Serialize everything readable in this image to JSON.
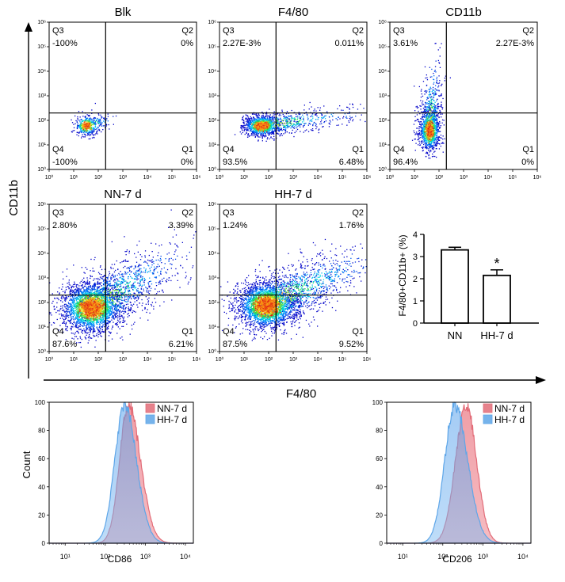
{
  "chart_data": {
    "type": "flow-cytometry-figure",
    "shared_axes": {
      "x_label": "F4/80",
      "y_label": "CD11b"
    },
    "tick_labels": [
      "10⁰",
      "10¹",
      "10²",
      "10³",
      "10⁴",
      "10⁵",
      "10⁶"
    ],
    "dot_plots": [
      {
        "title": "Blk",
        "quadrants": {
          "Q1": {
            "label": "Q1",
            "value": "0%"
          },
          "Q2": {
            "label": "Q2",
            "value": "0%"
          },
          "Q3": {
            "label": "Q3",
            "value": "-100%"
          },
          "Q4": {
            "label": "Q4",
            "value": "-100%"
          }
        },
        "population": {
          "center_log": [
            1.5,
            1.8
          ],
          "spread_log": [
            0.4,
            0.35
          ],
          "tail_log": [
            0.5,
            0.15
          ],
          "density": 450
        }
      },
      {
        "title": "F4/80",
        "quadrants": {
          "Q1": {
            "label": "Q1",
            "value": "6.48%"
          },
          "Q2": {
            "label": "Q2",
            "value": "0.011%"
          },
          "Q3": {
            "label": "Q3",
            "value": "2.27E-3%"
          },
          "Q4": {
            "label": "Q4",
            "value": "93.5%"
          }
        },
        "population": {
          "center_log": [
            1.7,
            1.8
          ],
          "spread_log": [
            0.6,
            0.35
          ],
          "tail_log": [
            2.2,
            0.3
          ],
          "density": 1500
        }
      },
      {
        "title": "CD11b",
        "quadrants": {
          "Q1": {
            "label": "Q1",
            "value": "0%"
          },
          "Q2": {
            "label": "Q2",
            "value": "2.27E-3%"
          },
          "Q3": {
            "label": "Q3",
            "value": "3.61%"
          },
          "Q4": {
            "label": "Q4",
            "value": "96.4%"
          }
        },
        "population": {
          "center_log": [
            1.6,
            1.6
          ],
          "spread_log": [
            0.35,
            0.7
          ],
          "tail_log": [
            0.1,
            1.4
          ],
          "density": 1300
        }
      },
      {
        "title": "NN-7 d",
        "quadrants": {
          "Q1": {
            "label": "Q1",
            "value": "6.21%"
          },
          "Q2": {
            "label": "Q2",
            "value": "3.39%"
          },
          "Q3": {
            "label": "Q3",
            "value": "2.80%"
          },
          "Q4": {
            "label": "Q4",
            "value": "87.6%"
          }
        },
        "population": {
          "center_log": [
            1.7,
            1.8
          ],
          "spread_log": [
            1.0,
            0.85
          ],
          "tail_log": [
            1.8,
            1.1
          ],
          "density": 3600
        }
      },
      {
        "title": "HH-7 d",
        "quadrants": {
          "Q1": {
            "label": "Q1",
            "value": "9.52%"
          },
          "Q2": {
            "label": "Q2",
            "value": "1.76%"
          },
          "Q3": {
            "label": "Q3",
            "value": "1.24%"
          },
          "Q4": {
            "label": "Q4",
            "value": "87.5%"
          }
        },
        "population": {
          "center_log": [
            1.9,
            1.9
          ],
          "spread_log": [
            1.0,
            0.8
          ],
          "tail_log": [
            2.3,
            1.1
          ],
          "density": 3600
        }
      }
    ],
    "bar_chart": {
      "type": "bar",
      "ylabel": "F4/80+CD11b+ (%)",
      "categories": [
        "NN",
        "HH-7 d"
      ],
      "values": [
        3.3,
        2.15
      ],
      "errors": [
        0.12,
        0.25
      ],
      "ylim": [
        0,
        4
      ],
      "ticks": [
        "0",
        "1",
        "2",
        "3",
        "4"
      ],
      "significance": "*"
    },
    "histograms": [
      {
        "xlabel": "CD86",
        "ylabel": "Count",
        "yticks": [
          "0",
          "20",
          "40",
          "60",
          "80",
          "100"
        ],
        "xticks": [
          "10¹",
          "10²",
          "10³",
          "10⁴"
        ],
        "xrange_log": [
          0.6,
          4.2
        ],
        "series": [
          {
            "name": "NN-7 d",
            "color": "#e26c78",
            "peak_log": 2.58,
            "sigma_left": 0.22,
            "sigma_right": 0.3
          },
          {
            "name": "HH-7 d",
            "color": "#5ea6e8",
            "peak_log": 2.48,
            "sigma_left": 0.24,
            "sigma_right": 0.3
          }
        ]
      },
      {
        "xlabel": "CD206",
        "ylabel": "",
        "yticks": [
          "0",
          "20",
          "40",
          "60",
          "80",
          "100"
        ],
        "xticks": [
          "10¹",
          "10²",
          "10³",
          "10⁴"
        ],
        "xrange_log": [
          0.6,
          4.2
        ],
        "series": [
          {
            "name": "NN-7 d",
            "color": "#e26c78",
            "peak_log": 2.58,
            "sigma_left": 0.26,
            "sigma_right": 0.26
          },
          {
            "name": "HH-7 d",
            "color": "#5ea6e8",
            "peak_log": 2.3,
            "sigma_left": 0.25,
            "sigma_right": 0.32
          }
        ]
      }
    ]
  }
}
